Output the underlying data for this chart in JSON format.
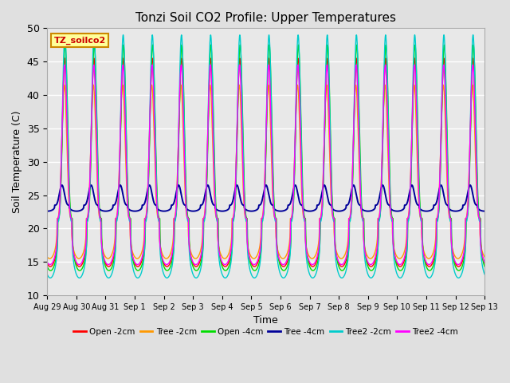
{
  "title": "Tonzi Soil CO2 Profile: Upper Temperatures",
  "xlabel": "Time",
  "ylabel": "Soil Temperature (C)",
  "ylim": [
    10,
    50
  ],
  "xlim": [
    0,
    15
  ],
  "series_labels": [
    "Open -2cm",
    "Tree -2cm",
    "Open -4cm",
    "Tree -4cm",
    "Tree2 -2cm",
    "Tree2 -4cm"
  ],
  "series_colors": [
    "#ff0000",
    "#ff9900",
    "#00dd00",
    "#000099",
    "#00cccc",
    "#ff00ff"
  ],
  "xtick_labels": [
    "Aug 29",
    "Aug 30",
    "Aug 31",
    "Sep 1",
    "Sep 2",
    "Sep 3",
    "Sep 4",
    "Sep 5",
    "Sep 6",
    "Sep 7",
    "Sep 8",
    "Sep 9",
    "Sep 10",
    "Sep 11",
    "Sep 12",
    "Sep 13"
  ],
  "legend_box_label": "TZ_soilco2",
  "legend_box_facecolor": "#ffff99",
  "legend_box_edgecolor": "#cc8800",
  "fig_facecolor": "#e0e0e0",
  "ax_facecolor": "#e8e8e8",
  "grid_color": "#ffffff",
  "num_days": 15,
  "points_per_day": 144,
  "peak_hour": 14.5,
  "sharpness": 3.5,
  "open_2cm": {
    "base": 21.5,
    "amp": 24.0,
    "phase": 0.0
  },
  "tree_2cm": {
    "base": 21.5,
    "amp": 20.0,
    "phase": 0.02
  },
  "open_4cm": {
    "base": 21.5,
    "amp": 26.0,
    "phase": -0.01
  },
  "tree_4cm": {
    "base": 23.5,
    "amp": 3.0,
    "phase": 0.1
  },
  "tree2_2cm": {
    "base": 21.0,
    "amp": 28.0,
    "phase": 0.0
  },
  "tree2_4cm": {
    "base": 21.5,
    "amp": 23.0,
    "phase": 0.01
  }
}
